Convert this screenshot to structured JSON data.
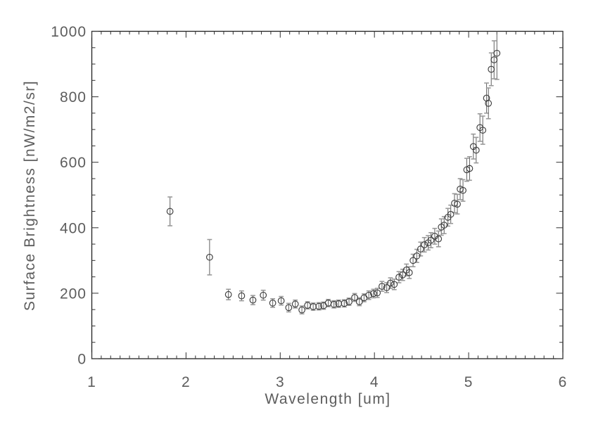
{
  "figure": {
    "background": "#ffffff",
    "frame_color": "#1f1f1f",
    "tick_color": "#3a3a3a",
    "text_color": "#5d5d5d",
    "marker_color": "#3d3d3d",
    "errorbar_color": "#6e6e6e",
    "cap_color": "#9a9a9a"
  },
  "chart_data": {
    "type": "scatter",
    "title": "",
    "xlabel": "Wavelength [um]",
    "ylabel": "Surface Brightness [nW/m2/sr]",
    "xlim": [
      1,
      6
    ],
    "ylim": [
      0,
      1000
    ],
    "x_major_ticks": [
      1,
      2,
      3,
      4,
      5,
      6
    ],
    "x_tick_labels": [
      "1",
      "2",
      "3",
      "4",
      "5",
      "6"
    ],
    "x_minor_interval": 0.1,
    "y_major_ticks": [
      0,
      200,
      400,
      600,
      800,
      1000
    ],
    "y_tick_labels": [
      "0",
      "200",
      "400",
      "600",
      "800",
      "1000"
    ],
    "y_minor_interval": 50,
    "grid": false,
    "legend": null,
    "marker": "open-circle",
    "series": [
      {
        "name": "surface-brightness",
        "points": [
          [
            1.83,
            450,
            44
          ],
          [
            2.25,
            310,
            54
          ],
          [
            2.45,
            196,
            16
          ],
          [
            2.59,
            192,
            15
          ],
          [
            2.71,
            179,
            14
          ],
          [
            2.82,
            194,
            15
          ],
          [
            2.92,
            170,
            13
          ],
          [
            3.01,
            177,
            13
          ],
          [
            3.09,
            156,
            13
          ],
          [
            3.16,
            167,
            12
          ],
          [
            3.23,
            149,
            12
          ],
          [
            3.29,
            163,
            11
          ],
          [
            3.35,
            159,
            11
          ],
          [
            3.41,
            160,
            11
          ],
          [
            3.46,
            162,
            11
          ],
          [
            3.51,
            170,
            11
          ],
          [
            3.57,
            166,
            11
          ],
          [
            3.62,
            168,
            11
          ],
          [
            3.68,
            169,
            11
          ],
          [
            3.73,
            174,
            11
          ],
          [
            3.79,
            187,
            12
          ],
          [
            3.84,
            174,
            12
          ],
          [
            3.89,
            186,
            12
          ],
          [
            3.94,
            194,
            13
          ],
          [
            3.99,
            199,
            13
          ],
          [
            4.03,
            201,
            14
          ],
          [
            4.08,
            221,
            15
          ],
          [
            4.13,
            217,
            15
          ],
          [
            4.17,
            231,
            16
          ],
          [
            4.21,
            227,
            16
          ],
          [
            4.26,
            249,
            17
          ],
          [
            4.3,
            256,
            17
          ],
          [
            4.34,
            271,
            18
          ],
          [
            4.37,
            263,
            18
          ],
          [
            4.41,
            300,
            19
          ],
          [
            4.45,
            314,
            20
          ],
          [
            4.49,
            335,
            21
          ],
          [
            4.53,
            348,
            22
          ],
          [
            4.57,
            354,
            22
          ],
          [
            4.6,
            362,
            23
          ],
          [
            4.64,
            374,
            24
          ],
          [
            4.68,
            366,
            24
          ],
          [
            4.71,
            402,
            25
          ],
          [
            4.74,
            408,
            26
          ],
          [
            4.78,
            432,
            27
          ],
          [
            4.81,
            441,
            28
          ],
          [
            4.85,
            475,
            29
          ],
          [
            4.88,
            472,
            30
          ],
          [
            4.91,
            518,
            32
          ],
          [
            4.94,
            514,
            33
          ],
          [
            4.98,
            577,
            35
          ],
          [
            5.01,
            581,
            36
          ],
          [
            5.05,
            648,
            38
          ],
          [
            5.08,
            637,
            39
          ],
          [
            5.12,
            706,
            42
          ],
          [
            5.15,
            698,
            43
          ],
          [
            5.19,
            796,
            46
          ],
          [
            5.21,
            780,
            47
          ],
          [
            5.24,
            884,
            50
          ],
          [
            5.27,
            913,
            58
          ],
          [
            5.3,
            933,
            80
          ]
        ]
      }
    ]
  }
}
